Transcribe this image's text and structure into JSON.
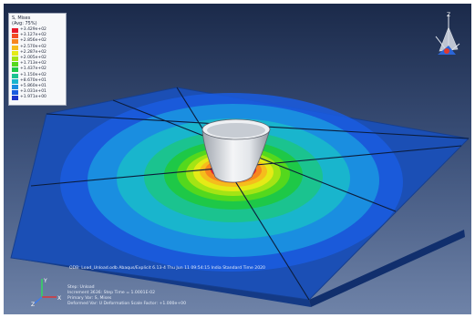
{
  "legend": {
    "title": "S, Mises",
    "subtitle": "(Avg: 75%)",
    "entries": [
      {
        "value": "+3.429e+02",
        "color": "#e8182b"
      },
      {
        "value": "+3.127e+02",
        "color": "#f24a24"
      },
      {
        "value": "+2.856e+02",
        "color": "#f7861f"
      },
      {
        "value": "+2.570e+02",
        "color": "#f5bd1c"
      },
      {
        "value": "+2.287e+02",
        "color": "#e5ea16"
      },
      {
        "value": "+2.005e+02",
        "color": "#a4e414"
      },
      {
        "value": "+1.713e+02",
        "color": "#54d81d"
      },
      {
        "value": "+1.437e+02",
        "color": "#1ec847"
      },
      {
        "value": "+1.150e+02",
        "color": "#1bc38f"
      },
      {
        "value": "+8.670e+01",
        "color": "#19b5cd"
      },
      {
        "value": "+5.860e+01",
        "color": "#1a8ee0"
      },
      {
        "value": "+3.031e+01",
        "color": "#1a5ce0"
      },
      {
        "value": "+1.971e+00",
        "color": "#1c33c9"
      }
    ]
  },
  "info": {
    "odb_line": "ODB: Load_Unload.odb    Abaqus/Explicit 6.13-4    Thu Jun 11 09:54:15 India Standard Time 2020",
    "step": "Step: Unload",
    "increment": "Increment    3636: Step Time =    1.0001E-02",
    "primary_var": "Primary Var: S, Mises",
    "deformed_var": "Deformed Var: U   Deformation Scale Factor: +1.000e+00"
  },
  "triad": {
    "x": "X",
    "y": "Y",
    "z": "Z"
  },
  "colors": {
    "plate_base": "#1b4fb5",
    "plate_edge": "#163f8f",
    "indenter": "#d9dde3"
  }
}
